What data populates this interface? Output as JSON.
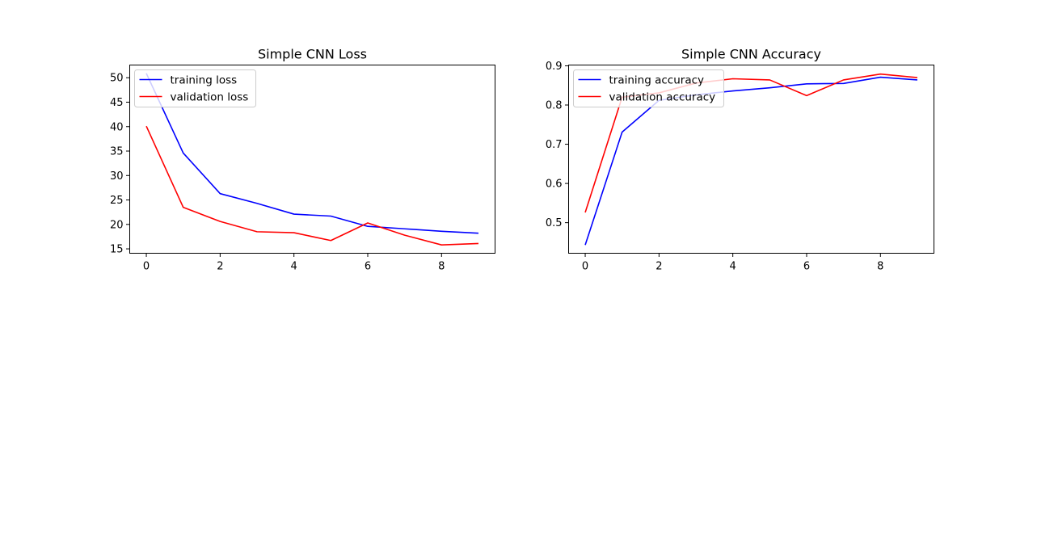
{
  "chart_data": [
    {
      "type": "line",
      "title": "Simple CNN Loss",
      "xlabel": "",
      "ylabel": "",
      "x": [
        0,
        1,
        2,
        3,
        4,
        5,
        6,
        7,
        8,
        9
      ],
      "xticks": [
        0,
        2,
        4,
        6,
        8
      ],
      "yticks": [
        15,
        20,
        25,
        30,
        35,
        40,
        45,
        50
      ],
      "xlim": [
        -0.45,
        9.45
      ],
      "ylim": [
        14.1,
        52.6
      ],
      "grid": false,
      "legend_position": "upper left",
      "series": [
        {
          "name": "training loss",
          "color": "#0000ff",
          "values": [
            50.9,
            34.6,
            26.3,
            24.3,
            22.1,
            21.7,
            19.6,
            19.1,
            18.6,
            18.2
          ]
        },
        {
          "name": "validation loss",
          "color": "#ff0000",
          "values": [
            40.1,
            23.5,
            20.6,
            18.5,
            18.3,
            16.7,
            20.3,
            17.8,
            15.8,
            16.1
          ]
        }
      ]
    },
    {
      "type": "line",
      "title": "Simple CNN Accuracy",
      "xlabel": "",
      "ylabel": "",
      "x": [
        0,
        1,
        2,
        3,
        4,
        5,
        6,
        7,
        8,
        9
      ],
      "xticks": [
        0,
        2,
        4,
        6,
        8
      ],
      "yticks": [
        0.5,
        0.6,
        0.7,
        0.8,
        0.9
      ],
      "xlim": [
        -0.45,
        9.45
      ],
      "ylim": [
        0.422,
        0.902
      ],
      "grid": false,
      "legend_position": "upper left",
      "series": [
        {
          "name": "training accuracy",
          "color": "#0000ff",
          "values": [
            0.443,
            0.731,
            0.812,
            0.826,
            0.836,
            0.844,
            0.854,
            0.855,
            0.871,
            0.864
          ]
        },
        {
          "name": "validation accuracy",
          "color": "#ff0000",
          "values": [
            0.526,
            0.82,
            0.831,
            0.856,
            0.867,
            0.864,
            0.824,
            0.864,
            0.879,
            0.87
          ]
        }
      ]
    }
  ]
}
